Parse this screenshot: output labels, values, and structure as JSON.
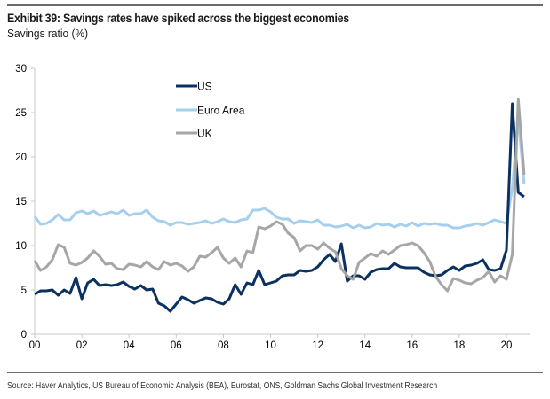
{
  "header": {
    "title": "Exhibit 39: Savings rates have spiked across the biggest economies",
    "subtitle": "Savings ratio (%)"
  },
  "footer": {
    "source": "Source: Haver Analytics, US Bureau of Economic Analysis (BEA), Eurostat, ONS, Goldman Sachs Global Investment Research"
  },
  "chart_data": {
    "type": "line",
    "title": "Exhibit 39: Savings rates have spiked across the biggest economies",
    "subtitle": "Savings ratio (%)",
    "xlabel": "",
    "ylabel": "Savings ratio (%)",
    "xlim": [
      2000,
      2021.0
    ],
    "ylim": [
      0,
      30
    ],
    "yticks": [
      0,
      5,
      10,
      15,
      20,
      25,
      30
    ],
    "ytick_labels": [
      "0",
      "5",
      "10",
      "15",
      "20",
      "25",
      "30"
    ],
    "xticks": [
      2000,
      2002,
      2004,
      2006,
      2008,
      2010,
      2012,
      2014,
      2016,
      2018,
      2020
    ],
    "xtick_labels": [
      "00",
      "02",
      "04",
      "06",
      "08",
      "10",
      "12",
      "14",
      "16",
      "18",
      "20"
    ],
    "grid": false,
    "legend": "top-left inside plot",
    "series": [
      {
        "name": "US",
        "color": "#0b3160",
        "x": [
          2000.0,
          2000.25,
          2000.5,
          2000.75,
          2001.0,
          2001.25,
          2001.5,
          2001.75,
          2002.0,
          2002.25,
          2002.5,
          2002.75,
          2003.0,
          2003.25,
          2003.5,
          2003.75,
          2004.0,
          2004.25,
          2004.5,
          2004.75,
          2005.0,
          2005.25,
          2005.5,
          2005.75,
          2006.0,
          2006.25,
          2006.5,
          2006.75,
          2007.0,
          2007.25,
          2007.5,
          2007.75,
          2008.0,
          2008.25,
          2008.5,
          2008.75,
          2009.0,
          2009.25,
          2009.5,
          2009.75,
          2010.0,
          2010.25,
          2010.5,
          2010.75,
          2011.0,
          2011.25,
          2011.5,
          2011.75,
          2012.0,
          2012.25,
          2012.5,
          2012.75,
          2013.0,
          2013.25,
          2013.5,
          2013.75,
          2014.0,
          2014.25,
          2014.5,
          2014.75,
          2015.0,
          2015.25,
          2015.5,
          2015.75,
          2016.0,
          2016.25,
          2016.5,
          2016.75,
          2017.0,
          2017.25,
          2017.5,
          2017.75,
          2018.0,
          2018.25,
          2018.5,
          2018.75,
          2019.0,
          2019.25,
          2019.5,
          2019.75,
          2020.0,
          2020.25,
          2020.5,
          2020.75
        ],
        "values": [
          4.5,
          4.9,
          4.9,
          5.0,
          4.4,
          5.0,
          4.6,
          6.4,
          4.0,
          5.8,
          6.2,
          5.5,
          5.6,
          5.5,
          5.6,
          5.9,
          5.4,
          5.1,
          5.5,
          5.0,
          5.1,
          3.5,
          3.2,
          2.6,
          3.4,
          4.2,
          3.9,
          3.5,
          3.8,
          4.1,
          4.0,
          3.6,
          3.4,
          4.0,
          5.6,
          4.5,
          5.8,
          5.6,
          7.2,
          5.6,
          5.8,
          6.0,
          6.6,
          6.7,
          6.7,
          7.2,
          7.1,
          7.2,
          7.6,
          8.4,
          9.0,
          8.2,
          10.2,
          6.0,
          6.6,
          6.6,
          6.2,
          7.0,
          7.3,
          7.4,
          7.4,
          8.0,
          7.6,
          7.5,
          7.5,
          7.5,
          7.0,
          6.7,
          6.6,
          6.7,
          7.2,
          7.6,
          7.2,
          7.7,
          7.8,
          8.0,
          8.4,
          7.3,
          7.2,
          7.4,
          9.5,
          26.0,
          16.0,
          15.5
        ]
      },
      {
        "name": "Euro Area",
        "color": "#a6cfee",
        "x": [
          2000.0,
          2000.25,
          2000.5,
          2000.75,
          2001.0,
          2001.25,
          2001.5,
          2001.75,
          2002.0,
          2002.25,
          2002.5,
          2002.75,
          2003.0,
          2003.25,
          2003.5,
          2003.75,
          2004.0,
          2004.25,
          2004.5,
          2004.75,
          2005.0,
          2005.25,
          2005.5,
          2005.75,
          2006.0,
          2006.25,
          2006.5,
          2006.75,
          2007.0,
          2007.25,
          2007.5,
          2007.75,
          2008.0,
          2008.25,
          2008.5,
          2008.75,
          2009.0,
          2009.25,
          2009.5,
          2009.75,
          2010.0,
          2010.25,
          2010.5,
          2010.75,
          2011.0,
          2011.25,
          2011.5,
          2011.75,
          2012.0,
          2012.25,
          2012.5,
          2012.75,
          2013.0,
          2013.25,
          2013.5,
          2013.75,
          2014.0,
          2014.25,
          2014.5,
          2014.75,
          2015.0,
          2015.25,
          2015.5,
          2015.75,
          2016.0,
          2016.25,
          2016.5,
          2016.75,
          2017.0,
          2017.25,
          2017.5,
          2017.75,
          2018.0,
          2018.25,
          2018.5,
          2018.75,
          2019.0,
          2019.25,
          2019.5,
          2019.75,
          2020.0,
          2020.25,
          2020.5,
          2020.75
        ],
        "values": [
          13.3,
          12.4,
          12.5,
          12.9,
          13.5,
          12.9,
          12.9,
          13.7,
          13.9,
          13.6,
          13.9,
          13.4,
          13.6,
          13.8,
          13.6,
          14.0,
          13.4,
          13.6,
          13.6,
          14.0,
          13.2,
          12.8,
          12.7,
          12.3,
          12.6,
          12.6,
          12.4,
          12.5,
          12.6,
          12.8,
          12.5,
          12.7,
          13.0,
          12.7,
          12.6,
          12.9,
          13.0,
          14.0,
          14.0,
          14.2,
          13.8,
          13.2,
          13.0,
          13.0,
          12.5,
          12.8,
          12.7,
          12.6,
          12.9,
          12.3,
          12.3,
          12.1,
          12.2,
          12.4,
          12.0,
          12.3,
          12.0,
          12.1,
          12.5,
          12.3,
          12.4,
          12.1,
          12.4,
          12.2,
          12.6,
          12.2,
          12.5,
          12.4,
          12.5,
          12.3,
          12.3,
          12.0,
          12.0,
          12.2,
          12.3,
          12.5,
          12.3,
          12.6,
          12.9,
          12.7,
          12.5,
          16.5,
          24.5,
          17.0
        ]
      },
      {
        "name": "UK",
        "color": "#a6a6a6",
        "x": [
          2000.0,
          2000.25,
          2000.5,
          2000.75,
          2001.0,
          2001.25,
          2001.5,
          2001.75,
          2002.0,
          2002.25,
          2002.5,
          2002.75,
          2003.0,
          2003.25,
          2003.5,
          2003.75,
          2004.0,
          2004.25,
          2004.5,
          2004.75,
          2005.0,
          2005.25,
          2005.5,
          2005.75,
          2006.0,
          2006.25,
          2006.5,
          2006.75,
          2007.0,
          2007.25,
          2007.5,
          2007.75,
          2008.0,
          2008.25,
          2008.5,
          2008.75,
          2009.0,
          2009.25,
          2009.5,
          2009.75,
          2010.0,
          2010.25,
          2010.5,
          2010.75,
          2011.0,
          2011.25,
          2011.5,
          2011.75,
          2012.0,
          2012.25,
          2012.5,
          2012.75,
          2013.0,
          2013.25,
          2013.5,
          2013.75,
          2014.0,
          2014.25,
          2014.5,
          2014.75,
          2015.0,
          2015.25,
          2015.5,
          2015.75,
          2016.0,
          2016.25,
          2016.5,
          2016.75,
          2017.0,
          2017.25,
          2017.5,
          2017.75,
          2018.0,
          2018.25,
          2018.5,
          2018.75,
          2019.0,
          2019.25,
          2019.5,
          2019.75,
          2020.0,
          2020.25,
          2020.5,
          2020.75
        ],
        "values": [
          8.3,
          7.2,
          7.6,
          8.4,
          10.1,
          9.8,
          8.0,
          7.8,
          8.1,
          8.6,
          9.4,
          8.8,
          7.9,
          8.0,
          7.4,
          7.3,
          7.9,
          7.8,
          7.6,
          8.2,
          7.6,
          7.3,
          8.2,
          7.8,
          8.0,
          7.7,
          7.1,
          7.6,
          8.8,
          8.7,
          9.2,
          9.8,
          8.6,
          8.0,
          8.6,
          7.6,
          9.4,
          9.2,
          12.1,
          11.9,
          12.2,
          12.7,
          12.4,
          11.4,
          10.9,
          9.4,
          10.0,
          10.0,
          9.6,
          10.3,
          9.7,
          9.3,
          7.4,
          6.6,
          6.2,
          8.1,
          8.6,
          9.1,
          8.8,
          9.4,
          9.0,
          9.5,
          10.0,
          10.1,
          10.3,
          10.0,
          9.2,
          8.2,
          6.5,
          5.6,
          4.9,
          6.3,
          6.1,
          5.8,
          5.7,
          6.1,
          6.4,
          7.1,
          5.9,
          6.6,
          6.2,
          9.0,
          26.5,
          18.0
        ]
      }
    ]
  }
}
